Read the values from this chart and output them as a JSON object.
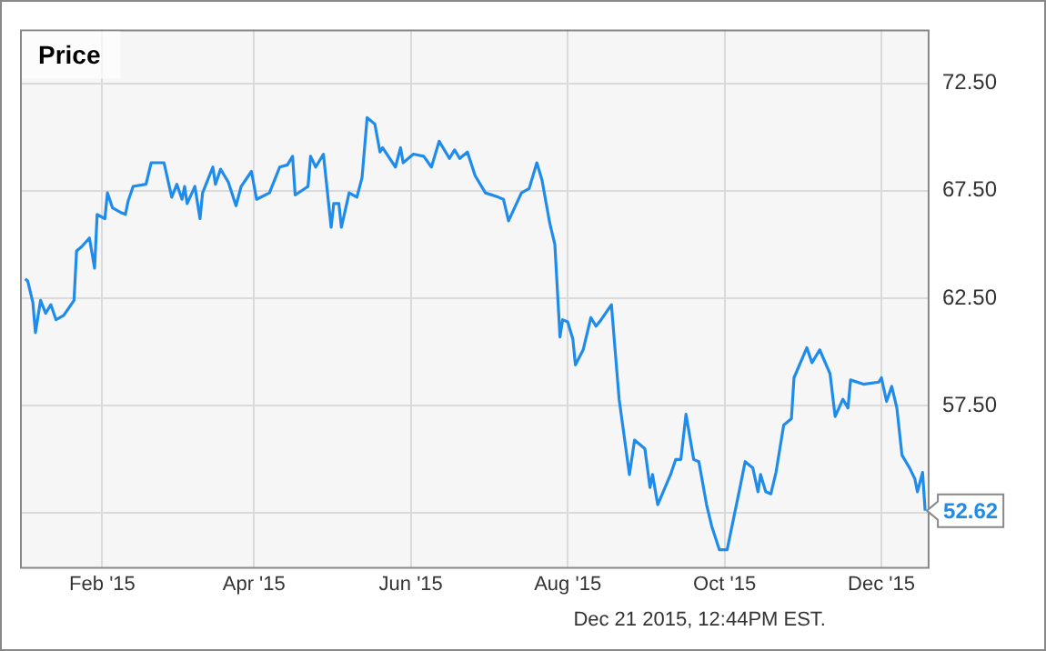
{
  "chart_data": {
    "type": "line",
    "title": "Price",
    "x": [
      "2015-01-02",
      "2015-01-03",
      "2015-01-05",
      "2015-01-06",
      "2015-01-08",
      "2015-01-10",
      "2015-01-12",
      "2015-01-14",
      "2015-01-17",
      "2015-01-21",
      "2015-01-22",
      "2015-01-24",
      "2015-01-27",
      "2015-01-29",
      "2015-01-30",
      "2015-02-02",
      "2015-02-03",
      "2015-02-05",
      "2015-02-08",
      "2015-02-10",
      "2015-02-11",
      "2015-02-13",
      "2015-02-18",
      "2015-02-20",
      "2015-02-25",
      "2015-02-28",
      "2015-03-02",
      "2015-03-04",
      "2015-03-05",
      "2015-03-06",
      "2015-03-09",
      "2015-03-11",
      "2015-03-12",
      "2015-03-16",
      "2015-03-17",
      "2015-03-19",
      "2015-03-22",
      "2015-03-25",
      "2015-03-27",
      "2015-03-31",
      "2015-04-02",
      "2015-04-07",
      "2015-04-11",
      "2015-04-14",
      "2015-04-16",
      "2015-04-17",
      "2015-04-22",
      "2015-04-23",
      "2015-04-25",
      "2015-04-28",
      "2015-05-01",
      "2015-05-02",
      "2015-05-04",
      "2015-05-05",
      "2015-05-08",
      "2015-05-11",
      "2015-05-13",
      "2015-05-15",
      "2015-05-18",
      "2015-05-20",
      "2015-05-21",
      "2015-05-26",
      "2015-05-28",
      "2015-05-29",
      "2015-06-02",
      "2015-06-06",
      "2015-06-09",
      "2015-06-12",
      "2015-06-16",
      "2015-06-18",
      "2015-06-20",
      "2015-06-23",
      "2015-06-26",
      "2015-06-30",
      "2015-07-05",
      "2015-07-07",
      "2015-07-09",
      "2015-07-14",
      "2015-07-17",
      "2015-07-20",
      "2015-07-22",
      "2015-07-25",
      "2015-07-27",
      "2015-07-29",
      "2015-07-30",
      "2015-08-01",
      "2015-08-03",
      "2015-08-04",
      "2015-08-07",
      "2015-08-10",
      "2015-08-12",
      "2015-08-14",
      "2015-08-18",
      "2015-08-21",
      "2015-08-25",
      "2015-08-27",
      "2015-08-31",
      "2015-09-02",
      "2015-09-03",
      "2015-09-05",
      "2015-09-10",
      "2015-09-12",
      "2015-09-14",
      "2015-09-16",
      "2015-09-19",
      "2015-09-21",
      "2015-09-24",
      "2015-09-26",
      "2015-09-29",
      "2015-10-02",
      "2015-10-07",
      "2015-10-09",
      "2015-10-12",
      "2015-10-14",
      "2015-10-15",
      "2015-10-17",
      "2015-10-19",
      "2015-10-21",
      "2015-10-24",
      "2015-10-27",
      "2015-10-28",
      "2015-11-02",
      "2015-11-04",
      "2015-11-07",
      "2015-11-11",
      "2015-11-13",
      "2015-11-16",
      "2015-11-18",
      "2015-11-19",
      "2015-11-24",
      "2015-11-30",
      "2015-12-01",
      "2015-12-03",
      "2015-12-05",
      "2015-12-07",
      "2015-12-09",
      "2015-12-12",
      "2015-12-14",
      "2015-12-15",
      "2015-12-17",
      "2015-12-18"
    ],
    "series": [
      {
        "color": "#1f8ceb",
        "values": [
          63.4,
          63.3,
          62.3,
          60.9,
          62.4,
          61.8,
          62.2,
          61.5,
          61.7,
          62.4,
          64.7,
          64.9,
          65.3,
          63.9,
          66.4,
          66.2,
          67.4,
          66.7,
          66.5,
          66.4,
          67.0,
          67.7,
          67.8,
          68.8,
          68.8,
          67.2,
          67.8,
          67.1,
          67.7,
          66.9,
          67.7,
          66.2,
          67.4,
          68.6,
          67.8,
          68.5,
          67.9,
          66.8,
          67.7,
          68.4,
          67.1,
          67.4,
          68.6,
          68.7,
          69.1,
          67.3,
          67.7,
          69.1,
          68.6,
          69.2,
          65.8,
          66.9,
          66.9,
          65.8,
          67.4,
          67.2,
          68.1,
          70.9,
          70.6,
          69.3,
          69.5,
          68.6,
          69.5,
          68.8,
          69.2,
          69.1,
          68.6,
          69.8,
          69.0,
          69.4,
          69.0,
          69.3,
          68.2,
          67.4,
          67.2,
          67.1,
          66.1,
          67.4,
          67.6,
          68.8,
          68.0,
          66.0,
          65.0,
          60.7,
          61.5,
          61.4,
          60.6,
          59.4,
          60.1,
          61.6,
          61.2,
          61.5,
          62.2,
          57.8,
          54.3,
          55.9,
          55.5,
          53.7,
          54.3,
          52.9,
          54.3,
          55.0,
          55.0,
          57.1,
          55.0,
          54.9,
          52.9,
          51.9,
          50.8,
          50.8,
          53.7,
          54.9,
          54.6,
          53.5,
          54.3,
          53.5,
          53.4,
          54.4,
          56.6,
          56.9,
          58.8,
          60.2,
          59.5,
          60.1,
          59.0,
          57.0,
          57.8,
          57.4,
          58.7,
          58.5,
          58.6,
          58.8,
          57.7,
          58.4,
          57.4,
          55.2,
          54.6,
          54.1,
          53.5,
          54.4,
          52.62
        ]
      }
    ],
    "xlim": [
      "2014-12-31",
      "2015-12-19"
    ],
    "xticks": [
      {
        "value": "2015-02-01",
        "label": "Feb '15"
      },
      {
        "value": "2015-04-01",
        "label": "Apr '15"
      },
      {
        "value": "2015-06-01",
        "label": "Jun '15"
      },
      {
        "value": "2015-08-01",
        "label": "Aug '15"
      },
      {
        "value": "2015-10-01",
        "label": "Oct '15"
      },
      {
        "value": "2015-12-01",
        "label": "Dec '15"
      }
    ],
    "ylim": [
      50,
      75
    ],
    "yticks": [
      {
        "value": 52.5,
        "label": null
      },
      {
        "value": 57.5,
        "label": "57.50"
      },
      {
        "value": 62.5,
        "label": "62.50"
      },
      {
        "value": 67.5,
        "label": "67.50"
      },
      {
        "value": 72.5,
        "label": "72.50"
      }
    ],
    "grid": true,
    "legend": false,
    "marker": "none",
    "line_style": "solid",
    "annotations": [
      {
        "text": "52.62",
        "x": "2015-12-18",
        "y": 52.62
      },
      "Dec 21 2015, 12:44PM EST."
    ]
  }
}
